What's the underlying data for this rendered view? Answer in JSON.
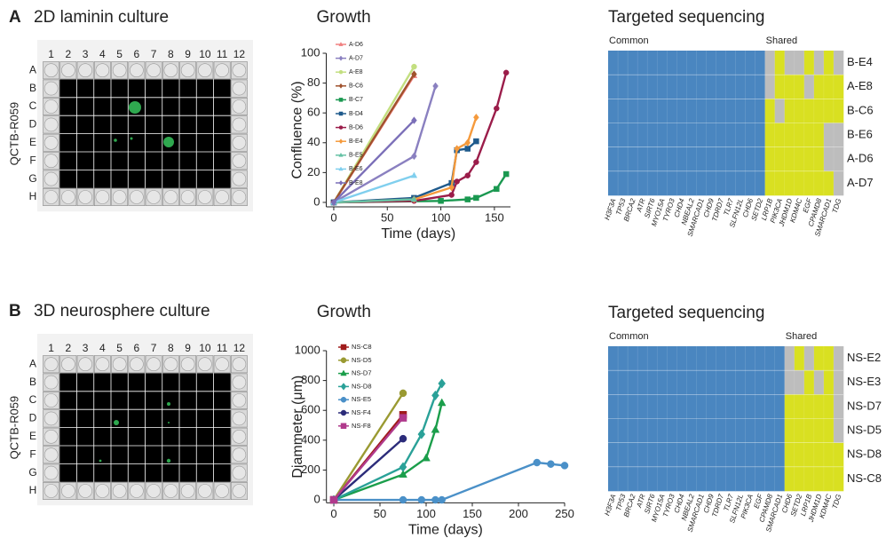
{
  "panels": [
    {
      "letter": "A",
      "title": "2D laminin culture",
      "plate_label": "QCTB-R059",
      "plate_columns": [
        "1",
        "2",
        "3",
        "4",
        "5",
        "6",
        "7",
        "8",
        "9",
        "10",
        "11",
        "12"
      ],
      "plate_rows": [
        "A",
        "B",
        "C",
        "D",
        "E",
        "F",
        "G",
        "H"
      ]
    },
    {
      "letter": "B",
      "title": "3D neurosphere culture",
      "plate_label": "QCTB-R059",
      "plate_columns": [
        "1",
        "2",
        "3",
        "4",
        "5",
        "6",
        "7",
        "8",
        "9",
        "10",
        "11",
        "12"
      ],
      "plate_rows": [
        "A",
        "B",
        "C",
        "D",
        "E",
        "F",
        "G",
        "H"
      ]
    }
  ],
  "chart_data": [
    {
      "type": "line",
      "title": "Growth",
      "xlabel": "Time (days)",
      "ylabel": "Confluence (%)",
      "xlim": [
        -7,
        165
      ],
      "xticks": [
        0,
        50,
        100,
        150
      ],
      "ylim": [
        -3,
        100
      ],
      "yticks": [
        0,
        20,
        40,
        60,
        80,
        100
      ],
      "legend": "upper left",
      "series": [
        {
          "name": "A-D6",
          "color": "#f08080",
          "marker": "triangle",
          "x": [
            0,
            75
          ],
          "values": [
            0,
            85
          ]
        },
        {
          "name": "A-D7",
          "color": "#8a80c0",
          "marker": "diamond",
          "x": [
            0,
            75,
            95
          ],
          "values": [
            0,
            31,
            78
          ]
        },
        {
          "name": "A-E8",
          "color": "#c3df80",
          "marker": "circle",
          "x": [
            0,
            75
          ],
          "values": [
            0,
            91
          ]
        },
        {
          "name": "B-C6",
          "color": "#a0522d",
          "marker": "diamond",
          "x": [
            0,
            75
          ],
          "values": [
            0,
            86
          ]
        },
        {
          "name": "B-C7",
          "color": "#1a9850",
          "marker": "square",
          "x": [
            0,
            100,
            125,
            133,
            152,
            161
          ],
          "values": [
            0,
            1,
            2,
            3,
            9,
            19
          ]
        },
        {
          "name": "B-D4",
          "color": "#1f5a8c",
          "marker": "square",
          "x": [
            0,
            75,
            110,
            115,
            125,
            133
          ],
          "values": [
            0,
            3,
            13,
            35,
            36,
            41
          ]
        },
        {
          "name": "B-D6",
          "color": "#9b1d4a",
          "marker": "circle",
          "x": [
            0,
            75,
            110,
            115,
            125,
            133,
            152,
            161
          ],
          "values": [
            0,
            1,
            5,
            14,
            18,
            27,
            63,
            87
          ]
        },
        {
          "name": "B-E4",
          "color": "#f59a3c",
          "marker": "diamond",
          "x": [
            0,
            75,
            110,
            115,
            125,
            133
          ],
          "values": [
            0,
            2,
            10,
            36,
            40,
            57
          ]
        },
        {
          "name": "B-E5",
          "color": "#66c2a5",
          "marker": "triangle",
          "x": [
            0,
            75
          ],
          "values": [
            0,
            2
          ]
        },
        {
          "name": "B-E6",
          "color": "#80cfee",
          "marker": "triangle",
          "x": [
            0,
            75
          ],
          "values": [
            0,
            18
          ]
        },
        {
          "name": "B-E8",
          "color": "#7b6fb8",
          "marker": "diamond",
          "x": [
            0,
            75
          ],
          "values": [
            0,
            55
          ]
        }
      ]
    },
    {
      "type": "heatmap",
      "title": "Targeted sequencing",
      "groups": [
        "Common",
        "Shared"
      ],
      "palette": [
        "#bdbdbd",
        "#4a86c0",
        "#d9e021"
      ],
      "rows": [
        "B-E4",
        "A-E8",
        "B-C6",
        "B-E6",
        "A-D6",
        "A-D7"
      ],
      "row_colors": [
        "#f5a623",
        "#b8d67a",
        "#8b4513",
        "#6fb7e0",
        "#9b1d4a",
        "#7b72b8"
      ],
      "columns": [
        "H3F3A",
        "TP53",
        "BRCA2",
        "ATR",
        "SIRT6",
        "MYO15A",
        "TYRO3",
        "CHD4",
        "NBEAL2",
        "SMARCAD1",
        "CHD9",
        "TDRD7",
        "TLR7",
        "SLFN12L",
        "CHD6",
        "SETD2",
        "LRP1B",
        "PIK3CA",
        "JHDM1D",
        "KDM4C",
        "EGF",
        "CPAMD8",
        "SMARCAD1",
        "TDG"
      ],
      "column_colors": [
        "#333",
        "#333",
        "#333",
        "#333",
        "#333",
        "#333",
        "#333",
        "#333",
        "#333",
        "#333",
        "#333",
        "#333",
        "#333",
        "#333",
        "#aaa",
        "#aaa",
        "#aaa",
        "#aaa",
        "#aaa",
        "#aaa",
        "#aaa",
        "#aaa",
        "#aaa",
        "#aaa"
      ],
      "values": [
        [
          1,
          1,
          1,
          1,
          1,
          1,
          1,
          1,
          1,
          1,
          1,
          1,
          1,
          1,
          1,
          1,
          0,
          2,
          0,
          0,
          2,
          0,
          2,
          0
        ],
        [
          1,
          1,
          1,
          1,
          1,
          1,
          1,
          1,
          1,
          1,
          1,
          1,
          1,
          1,
          1,
          1,
          0,
          2,
          2,
          2,
          0,
          2,
          2,
          2
        ],
        [
          1,
          1,
          1,
          1,
          1,
          1,
          1,
          1,
          1,
          1,
          1,
          1,
          1,
          1,
          1,
          1,
          2,
          0,
          2,
          2,
          2,
          2,
          2,
          2
        ],
        [
          1,
          1,
          1,
          1,
          1,
          1,
          1,
          1,
          1,
          1,
          1,
          1,
          1,
          1,
          1,
          1,
          2,
          2,
          2,
          2,
          2,
          2,
          0,
          0
        ],
        [
          1,
          1,
          1,
          1,
          1,
          1,
          1,
          1,
          1,
          1,
          1,
          1,
          1,
          1,
          1,
          1,
          2,
          2,
          2,
          2,
          2,
          2,
          0,
          0
        ],
        [
          1,
          1,
          1,
          1,
          1,
          1,
          1,
          1,
          1,
          1,
          1,
          1,
          1,
          1,
          1,
          1,
          2,
          2,
          2,
          2,
          2,
          2,
          2,
          0
        ]
      ]
    },
    {
      "type": "line",
      "title": "Growth",
      "xlabel": "Time (days)",
      "ylabel": "Diammeter (μm)",
      "xlim": [
        -8,
        250
      ],
      "xticks": [
        0,
        50,
        100,
        150,
        200,
        250
      ],
      "ylim": [
        -20,
        1000
      ],
      "yticks": [
        0,
        200,
        400,
        600,
        800,
        1000
      ],
      "legend": "upper left",
      "series": [
        {
          "name": "NS-C8",
          "color": "#a01c1c",
          "marker": "square",
          "x": [
            0,
            75
          ],
          "values": [
            0,
            570
          ]
        },
        {
          "name": "NS-D5",
          "color": "#9a9a32",
          "marker": "circle",
          "x": [
            0,
            75
          ],
          "values": [
            0,
            715
          ]
        },
        {
          "name": "NS-D7",
          "color": "#1b9e4b",
          "marker": "triangle",
          "x": [
            0,
            75,
            100,
            110,
            117
          ],
          "values": [
            0,
            170,
            280,
            470,
            650
          ]
        },
        {
          "name": "NS-D8",
          "color": "#2aa198",
          "marker": "diamond",
          "x": [
            0,
            75,
            95,
            110,
            117
          ],
          "values": [
            0,
            220,
            440,
            700,
            780
          ]
        },
        {
          "name": "NS-E5",
          "color": "#4a90c8",
          "marker": "circle",
          "x": [
            0,
            75,
            95,
            110,
            117,
            220,
            235,
            250
          ],
          "values": [
            0,
            0,
            0,
            0,
            0,
            250,
            240,
            230
          ]
        },
        {
          "name": "NS-F4",
          "color": "#2c2c7a",
          "marker": "circle",
          "x": [
            0,
            75
          ],
          "values": [
            0,
            410
          ]
        },
        {
          "name": "NS-F8",
          "color": "#b03a8c",
          "marker": "square",
          "x": [
            0,
            75
          ],
          "values": [
            0,
            550
          ]
        }
      ]
    },
    {
      "type": "heatmap",
      "title": "Targeted sequencing",
      "groups": [
        "Common",
        "Shared"
      ],
      "palette": [
        "#bdbdbd",
        "#4a86c0",
        "#d9e021"
      ],
      "rows": [
        "NS-E2",
        "NS-E3",
        "NS-D7",
        "NS-D5",
        "NS-D8",
        "NS-C8"
      ],
      "row_colors": [
        "#aaaaaa",
        "#aaaaaa",
        "#1e9a4a",
        "#9a9a32",
        "#1fa3a0",
        "#a01c1c"
      ],
      "columns": [
        "H3F3A",
        "TP53",
        "BRCA2",
        "ATR",
        "SIRT6",
        "MYO15A",
        "TYRO3",
        "CHD4",
        "NBEAL2",
        "SMARCAD1",
        "CHD9",
        "TDRD7",
        "TLR7",
        "SLFN12L",
        "PIK3CA",
        "EGF",
        "CPAMD8",
        "SMARCAD1",
        "CHD6",
        "SETD2",
        "LRP1B",
        "JHDM1D",
        "KDM4C",
        "TDG"
      ],
      "column_colors": [
        "#333",
        "#333",
        "#333",
        "#333",
        "#333",
        "#333",
        "#333",
        "#333",
        "#333",
        "#333",
        "#333",
        "#333",
        "#333",
        "#333",
        "#aaa",
        "#aaa",
        "#aaa",
        "#aaa",
        "#aaa",
        "#aaa",
        "#aaa",
        "#aaa",
        "#aaa",
        "#aaa"
      ],
      "values": [
        [
          1,
          1,
          1,
          1,
          1,
          1,
          1,
          1,
          1,
          1,
          1,
          1,
          1,
          1,
          1,
          1,
          1,
          1,
          0,
          2,
          0,
          2,
          2,
          0
        ],
        [
          1,
          1,
          1,
          1,
          1,
          1,
          1,
          1,
          1,
          1,
          1,
          1,
          1,
          1,
          1,
          1,
          1,
          1,
          0,
          0,
          2,
          0,
          2,
          0
        ],
        [
          1,
          1,
          1,
          1,
          1,
          1,
          1,
          1,
          1,
          1,
          1,
          1,
          1,
          1,
          1,
          1,
          1,
          1,
          2,
          2,
          2,
          2,
          2,
          0
        ],
        [
          1,
          1,
          1,
          1,
          1,
          1,
          1,
          1,
          1,
          1,
          1,
          1,
          1,
          1,
          1,
          1,
          1,
          1,
          2,
          2,
          2,
          2,
          2,
          0
        ],
        [
          1,
          1,
          1,
          1,
          1,
          1,
          1,
          1,
          1,
          1,
          1,
          1,
          1,
          1,
          1,
          1,
          1,
          1,
          2,
          2,
          2,
          2,
          2,
          2
        ],
        [
          1,
          1,
          1,
          1,
          1,
          1,
          1,
          1,
          1,
          1,
          1,
          1,
          1,
          1,
          1,
          1,
          1,
          1,
          2,
          2,
          2,
          2,
          2,
          2
        ]
      ]
    }
  ]
}
